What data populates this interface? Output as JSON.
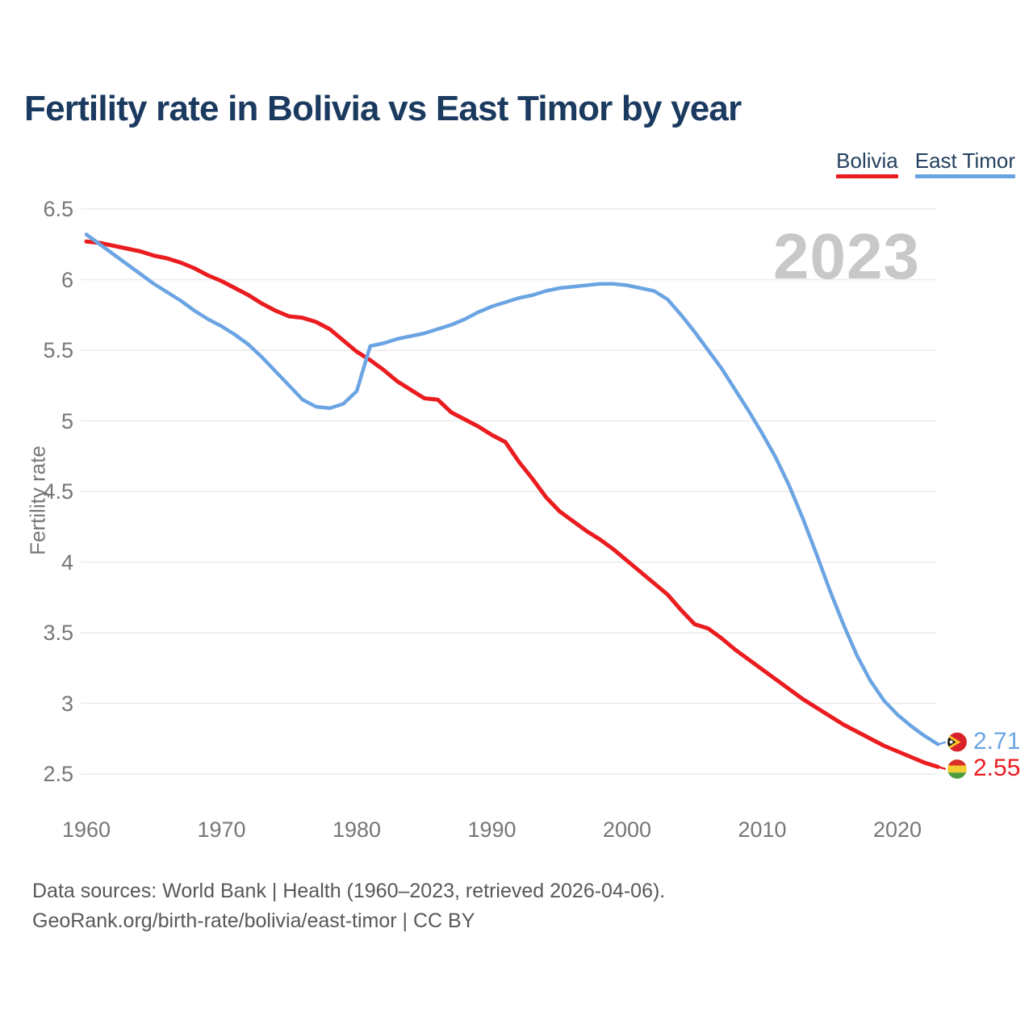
{
  "title": "Fertility rate in Bolivia vs East Timor by year",
  "legend": [
    {
      "label": "Bolivia",
      "color": "#ea1c1f"
    },
    {
      "label": "East Timor",
      "color": "#6ba4e2"
    }
  ],
  "watermark": "2023",
  "footer": {
    "line1": "Data sources: World Bank | Health (1960–2023, retrieved 2026-04-06).",
    "line2": "GeoRank.org/birth-rate/bolivia/east-timor | CC BY"
  },
  "chart_data": {
    "type": "line",
    "title": "Fertility rate in Bolivia vs East Timor by year",
    "xlabel": "",
    "ylabel": "Fertility rate",
    "xlim": [
      1960,
      2023
    ],
    "ylim": [
      2.5,
      6.5
    ],
    "x_ticks": [
      1960,
      1970,
      1980,
      1990,
      2000,
      2010,
      2020
    ],
    "y_ticks": [
      "6.5",
      "6",
      "5.5",
      "5",
      "4.5",
      "4",
      "3.5",
      "3",
      "2.5"
    ],
    "grid": "horizontal",
    "legend_position": "top-right",
    "x": [
      1960,
      1961,
      1962,
      1963,
      1964,
      1965,
      1966,
      1967,
      1968,
      1969,
      1970,
      1971,
      1972,
      1973,
      1974,
      1975,
      1976,
      1977,
      1978,
      1979,
      1980,
      1981,
      1982,
      1983,
      1984,
      1985,
      1986,
      1987,
      1988,
      1989,
      1990,
      1991,
      1992,
      1993,
      1994,
      1995,
      1996,
      1997,
      1998,
      1999,
      2000,
      2001,
      2002,
      2003,
      2004,
      2005,
      2006,
      2007,
      2008,
      2009,
      2010,
      2011,
      2012,
      2013,
      2014,
      2015,
      2016,
      2017,
      2018,
      2019,
      2020,
      2021,
      2022,
      2023
    ],
    "series": [
      {
        "name": "Bolivia",
        "color": "#ea1c1f",
        "end_label": "2.55",
        "values": [
          6.27,
          6.26,
          6.24,
          6.22,
          6.2,
          6.17,
          6.15,
          6.12,
          6.08,
          6.03,
          5.99,
          5.94,
          5.89,
          5.83,
          5.78,
          5.74,
          5.73,
          5.7,
          5.65,
          5.57,
          5.49,
          5.43,
          5.36,
          5.28,
          5.22,
          5.16,
          5.15,
          5.06,
          5.01,
          4.96,
          4.9,
          4.85,
          4.71,
          4.59,
          4.46,
          4.36,
          4.29,
          4.22,
          4.16,
          4.09,
          4.01,
          3.93,
          3.85,
          3.77,
          3.66,
          3.56,
          3.53,
          3.46,
          3.38,
          3.31,
          3.24,
          3.17,
          3.1,
          3.03,
          2.97,
          2.91,
          2.85,
          2.8,
          2.75,
          2.7,
          2.66,
          2.62,
          2.58,
          2.55
        ]
      },
      {
        "name": "East Timor",
        "color": "#6ba4e2",
        "end_label": "2.71",
        "values": [
          6.32,
          6.25,
          6.18,
          6.11,
          6.04,
          5.97,
          5.91,
          5.85,
          5.78,
          5.72,
          5.67,
          5.61,
          5.54,
          5.45,
          5.35,
          5.25,
          5.15,
          5.1,
          5.09,
          5.12,
          5.21,
          5.53,
          5.55,
          5.58,
          5.6,
          5.62,
          5.65,
          5.68,
          5.72,
          5.77,
          5.81,
          5.84,
          5.87,
          5.89,
          5.92,
          5.94,
          5.95,
          5.96,
          5.97,
          5.97,
          5.96,
          5.94,
          5.92,
          5.86,
          5.75,
          5.63,
          5.5,
          5.37,
          5.22,
          5.07,
          4.91,
          4.74,
          4.54,
          4.31,
          4.06,
          3.8,
          3.56,
          3.34,
          3.16,
          3.02,
          2.92,
          2.84,
          2.77,
          2.71
        ]
      }
    ]
  }
}
